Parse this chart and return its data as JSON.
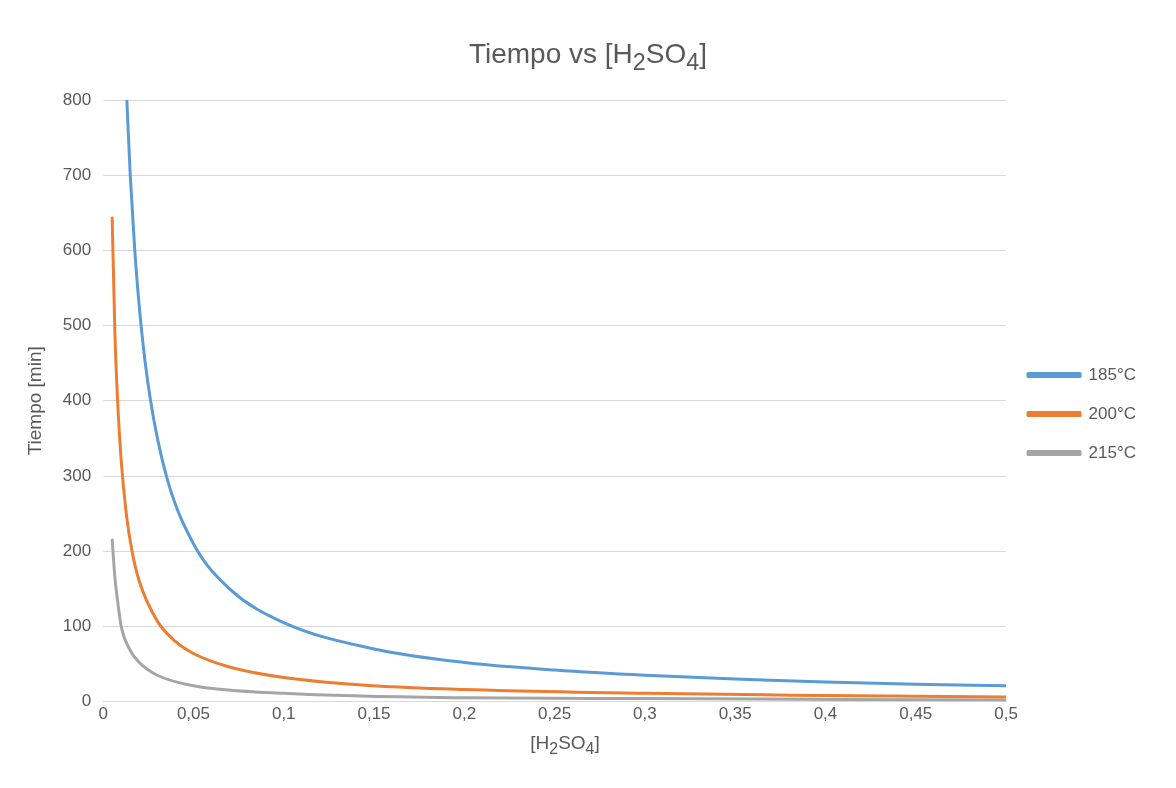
{
  "chart_data": {
    "type": "line",
    "title": "Tiempo vs [H$_{2}$SO$_{4}$]",
    "xlabel": "[H$_{2}$SO$_{4}$]",
    "ylabel": "Tiempo [min]",
    "xlim": [
      0,
      0.5
    ],
    "xticks": [
      0,
      {
        "value": 0.05,
        "label": "0,05"
      },
      {
        "value": 0.1,
        "label": "0,1"
      },
      {
        "value": 0.15,
        "label": "0,15"
      },
      {
        "value": 0.2,
        "label": "0,2"
      },
      {
        "value": 0.25,
        "label": "0,25"
      },
      {
        "value": 0.3,
        "label": "0,3"
      },
      {
        "value": 0.35,
        "label": "0,35"
      },
      {
        "value": 0.4,
        "label": "0,4"
      },
      {
        "value": 0.45,
        "label": "0,45"
      },
      {
        "value": 0.5,
        "label": "0,5"
      }
    ],
    "ylim": [
      0,
      800
    ],
    "yticks": [
      0,
      100,
      200,
      300,
      400,
      500,
      600,
      700,
      800
    ],
    "grid": "y",
    "legend": "right",
    "marker": "none",
    "line_style": "solid",
    "series": [
      {
        "name": "185°C",
        "color": "#5b9bd5",
        "x": [
          0.0131,
          0.015,
          0.0175,
          0.021,
          0.026,
          0.035,
          0.05,
          0.07,
          0.1,
          0.15,
          0.2,
          0.25,
          0.3,
          0.35,
          0.4,
          0.45,
          0.5
        ],
        "values": [
          800,
          700,
          600,
          500,
          404,
          300,
          210,
          150,
          105,
          70,
          52,
          42,
          35,
          30,
          26,
          23,
          21
        ]
      },
      {
        "name": "200°C",
        "color": "#ed7d31",
        "x": [
          0.005,
          0.0065,
          0.008,
          0.01,
          0.013,
          0.016,
          0.02,
          0.03,
          0.04,
          0.05,
          0.07,
          0.1,
          0.15,
          0.2,
          0.3,
          0.4,
          0.5
        ],
        "values": [
          643,
          490,
          400,
          320,
          246,
          200,
          160,
          107,
          80,
          64,
          46,
          32,
          21,
          16,
          11,
          8,
          6
        ]
      },
      {
        "name": "215°C",
        "color": "#a5a5a5",
        "x": [
          0.005,
          0.0065,
          0.008,
          0.01,
          0.015,
          0.02,
          0.03,
          0.05,
          0.1,
          0.2,
          0.3,
          0.5
        ],
        "values": [
          215,
          165,
          134,
          100,
          68,
          52,
          35,
          21,
          11,
          5,
          4,
          2
        ]
      }
    ]
  }
}
